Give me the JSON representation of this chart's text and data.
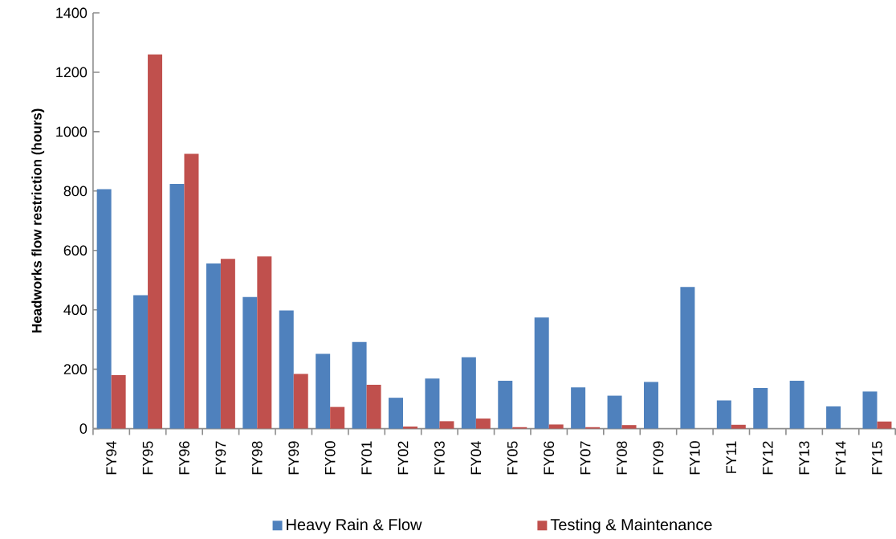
{
  "chart_data": {
    "type": "bar",
    "ylabel": "Headworks flow restriction (hours)",
    "categories": [
      "FY94",
      "FY95",
      "FY96",
      "FY97",
      "FY98",
      "FY99",
      "FY00",
      "FY01",
      "FY02",
      "FY03",
      "FY04",
      "FY05",
      "FY06",
      "FY07",
      "FY08",
      "FY09",
      "FY10",
      "FY11",
      "FY12",
      "FY13",
      "FY14",
      "FY15"
    ],
    "series": [
      {
        "name": "Heavy Rain & Flow",
        "color": "#4f81bd",
        "values": [
          806,
          449,
          824,
          556,
          443,
          398,
          252,
          292,
          104,
          169,
          240,
          161,
          374,
          139,
          111,
          157,
          477,
          95,
          137,
          161,
          75,
          125
        ]
      },
      {
        "name": "Testing & Maintenance",
        "color": "#c0504d",
        "values": [
          180,
          1260,
          925,
          572,
          580,
          184,
          73,
          148,
          7,
          25,
          34,
          5,
          14,
          5,
          12,
          0,
          0,
          13,
          0,
          0,
          0,
          24
        ]
      }
    ],
    "ylim": [
      0,
      1400
    ],
    "yticks": [
      0,
      200,
      400,
      600,
      800,
      1000,
      1200,
      1400
    ],
    "grid": false,
    "legend": "bottom"
  }
}
